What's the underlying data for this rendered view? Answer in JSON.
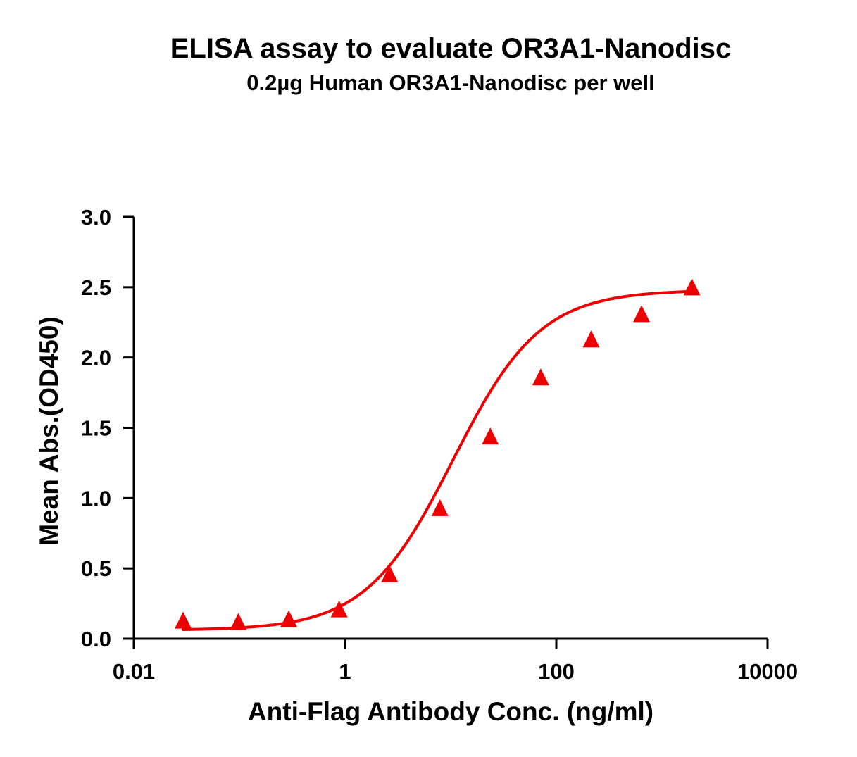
{
  "chart_data": {
    "type": "scatter",
    "title": "ELISA assay to evaluate OR3A1-Nanodisc",
    "subtitle": "0.2µg Human OR3A1-Nanodisc per well",
    "xlabel": "Anti-Flag Antibody Conc. (ng/ml)",
    "ylabel": "Mean Abs.(OD450)",
    "x_scale": "log10",
    "xlim": [
      0.01,
      10000
    ],
    "ylim": [
      0,
      3.0
    ],
    "x_ticks": [
      {
        "value": 0.01,
        "label": "0.01"
      },
      {
        "value": 1,
        "label": "1"
      },
      {
        "value": 100,
        "label": "100"
      },
      {
        "value": 10000,
        "label": "10000"
      }
    ],
    "y_ticks": [
      {
        "value": 0.0,
        "label": "0.0"
      },
      {
        "value": 0.5,
        "label": "0.5"
      },
      {
        "value": 1.0,
        "label": "1.0"
      },
      {
        "value": 1.5,
        "label": "1.5"
      },
      {
        "value": 2.0,
        "label": "2.0"
      },
      {
        "value": 2.5,
        "label": "2.5"
      },
      {
        "value": 3.0,
        "label": "3.0"
      }
    ],
    "grid": false,
    "legend": "none",
    "series": [
      {
        "marker": "triangle",
        "color": "#ee0000",
        "fit": "four-parameter logistic curve",
        "x": [
          0.0293,
          0.0977,
          0.293,
          0.879,
          2.64,
          7.91,
          23.7,
          71.2,
          214,
          641,
          1923
        ],
        "y": [
          0.12,
          0.11,
          0.13,
          0.2,
          0.45,
          0.92,
          1.43,
          1.85,
          2.12,
          2.3,
          2.49
        ]
      }
    ]
  }
}
